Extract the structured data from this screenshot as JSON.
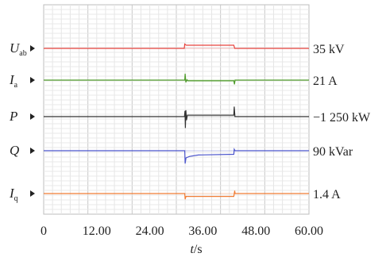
{
  "chart_data": {
    "type": "line",
    "title": "",
    "xlabel": "t/s",
    "ylabel": "",
    "xlim": [
      0,
      60
    ],
    "x_ticks": [
      "0",
      "12.00",
      "24.00",
      "36.00",
      "48.00",
      "60.00"
    ],
    "grid": true,
    "channels": [
      {
        "label_main": "U",
        "label_sub": "ab",
        "scale_label": "35 kV",
        "color": "#e8433d",
        "points": [
          [
            0,
            0
          ],
          [
            31.8,
            0
          ],
          [
            31.9,
            0.6
          ],
          [
            32.1,
            0.5
          ],
          [
            32.3,
            0.45
          ],
          [
            43.0,
            0.45
          ],
          [
            43.2,
            0
          ],
          [
            60,
            0
          ]
        ]
      },
      {
        "label_main": "I",
        "label_sub": "a",
        "scale_label": "21 A",
        "color": "#4e9a2a",
        "points": [
          [
            0,
            0
          ],
          [
            31.9,
            0
          ],
          [
            32.0,
            0.9
          ],
          [
            32.15,
            -0.3
          ],
          [
            32.4,
            0.05
          ],
          [
            32.6,
            -0.1
          ],
          [
            43.0,
            -0.1
          ],
          [
            43.15,
            -0.6
          ],
          [
            43.3,
            0
          ],
          [
            60,
            0
          ]
        ]
      },
      {
        "label_main": "P",
        "label_sub": "",
        "scale_label": "−1 250 kW",
        "color": "#333333",
        "points": [
          [
            0,
            0
          ],
          [
            31.85,
            0
          ],
          [
            31.95,
            0.8
          ],
          [
            32.05,
            -1.6
          ],
          [
            32.15,
            0.9
          ],
          [
            32.3,
            -0.5
          ],
          [
            32.5,
            0.2
          ],
          [
            43.0,
            0.2
          ],
          [
            43.1,
            1.4
          ],
          [
            43.25,
            0
          ],
          [
            60,
            0
          ]
        ]
      },
      {
        "label_main": "Q",
        "label_sub": "",
        "scale_label": "90 kVar",
        "color": "#4b55cc",
        "points": [
          [
            0,
            0
          ],
          [
            31.9,
            0
          ],
          [
            32.0,
            -1.8
          ],
          [
            32.2,
            -1.0
          ],
          [
            33.0,
            -0.8
          ],
          [
            35.0,
            -0.6
          ],
          [
            43.0,
            -0.5
          ],
          [
            43.1,
            0.2
          ],
          [
            43.3,
            0
          ],
          [
            60,
            0
          ]
        ]
      },
      {
        "label_main": "I",
        "label_sub": "q",
        "scale_label": "1.4 A",
        "color": "#f07c34",
        "points": [
          [
            0,
            0
          ],
          [
            31.9,
            0
          ],
          [
            32.0,
            -0.8
          ],
          [
            32.2,
            -0.4
          ],
          [
            43.0,
            -0.4
          ],
          [
            43.2,
            0.4
          ],
          [
            43.3,
            0
          ],
          [
            60,
            0
          ]
        ]
      }
    ]
  }
}
